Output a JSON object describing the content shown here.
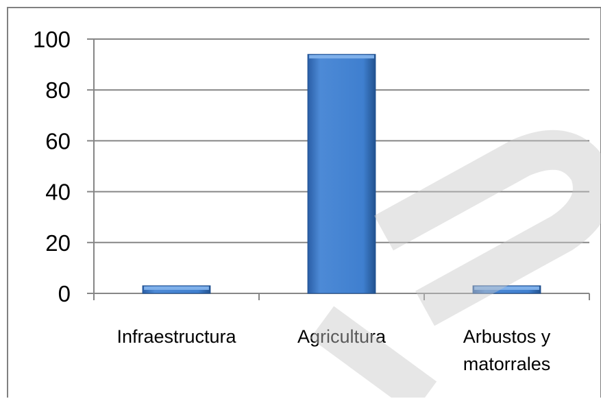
{
  "chart_data": {
    "type": "bar",
    "categories": [
      "Infraestructura",
      "Agricultura",
      "Arbustos y matorrales"
    ],
    "category_lines": [
      [
        "Infraestructura"
      ],
      [
        "Agricultura"
      ],
      [
        "Arbustos y",
        "matorrales"
      ]
    ],
    "values": [
      3,
      94,
      3
    ],
    "ylim": [
      0,
      100
    ],
    "yticks": [
      "0",
      "20",
      "40",
      "60",
      "80",
      "100"
    ],
    "grid": true,
    "legend": "none",
    "bar_color": "#3f7fcf"
  }
}
